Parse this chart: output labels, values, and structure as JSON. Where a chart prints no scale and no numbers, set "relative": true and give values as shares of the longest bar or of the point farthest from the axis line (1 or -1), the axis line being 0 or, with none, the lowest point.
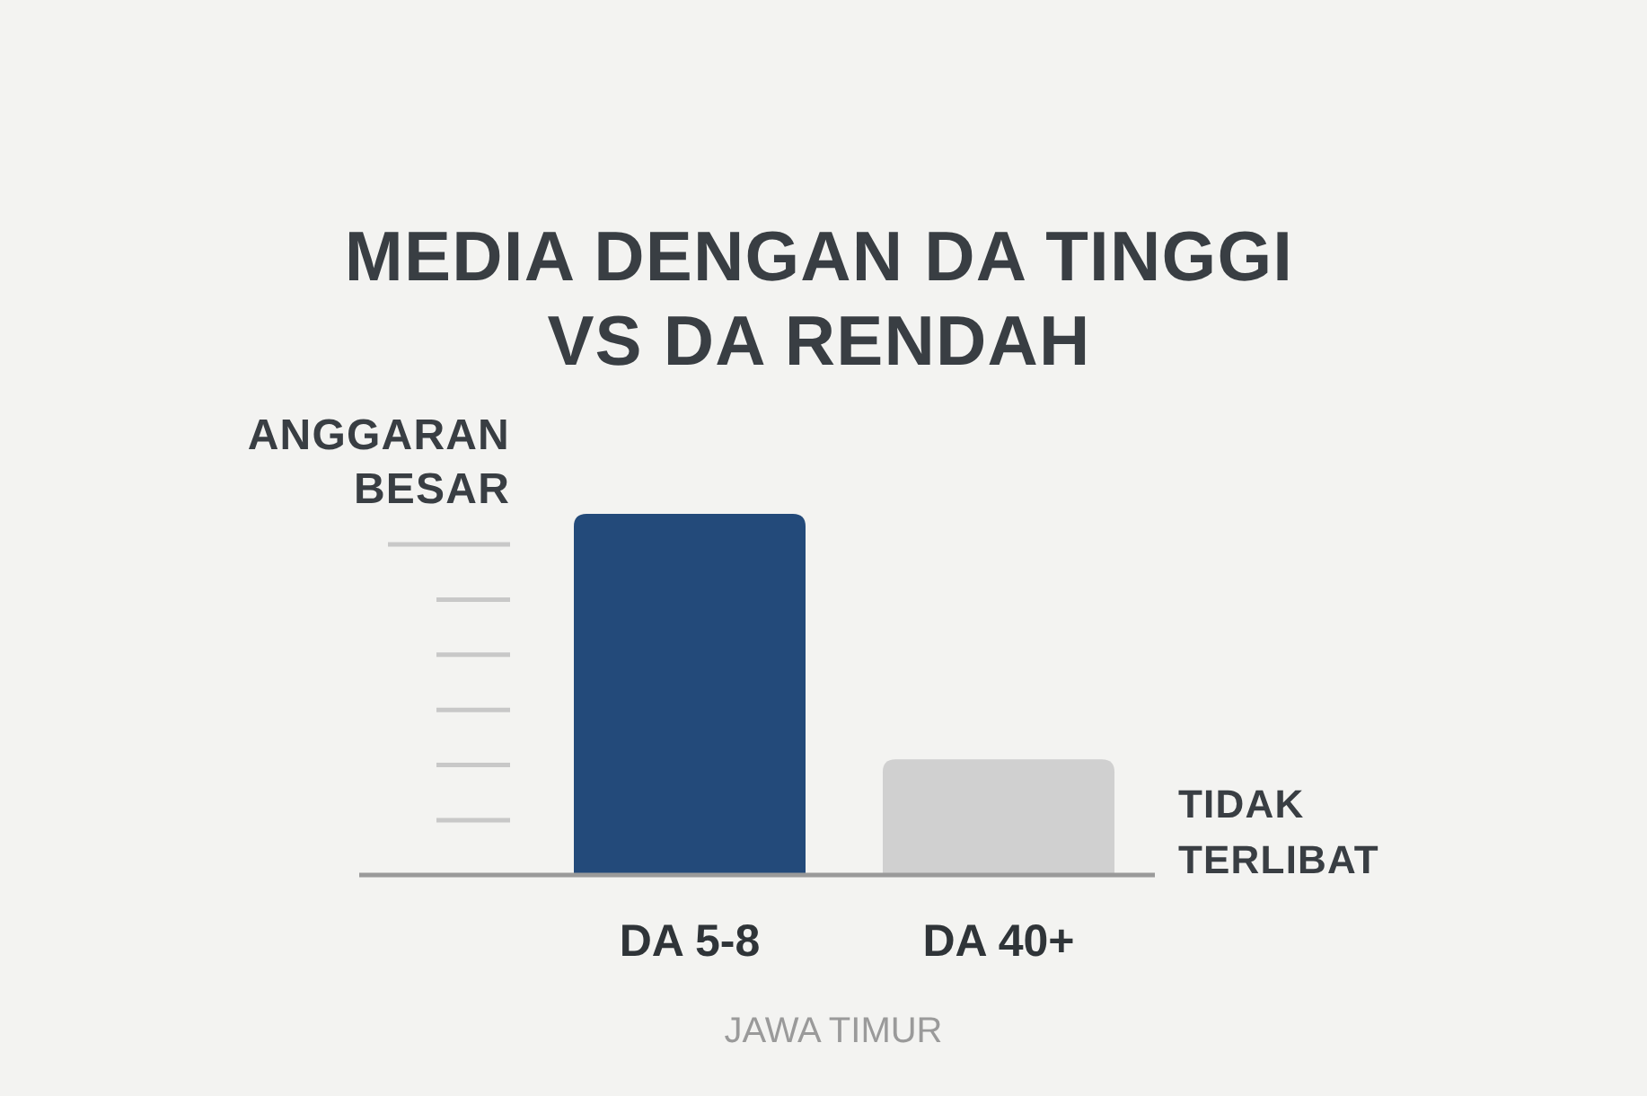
{
  "chart_data": {
    "type": "bar",
    "title": "MEDIA DENGAN DA TINGGI VS DA RENDAH",
    "ylabel": "ANGGARAN BESAR",
    "xlabel": "JAWA TIMUR",
    "categories": [
      "DA 5-8",
      "DA 40+"
    ],
    "values": [
      1,
      0.32
    ],
    "colors": [
      "#234a7a",
      "#d0d0d0"
    ],
    "relative": true,
    "annotations": [
      "TIDAK TERLIBAT"
    ]
  }
}
